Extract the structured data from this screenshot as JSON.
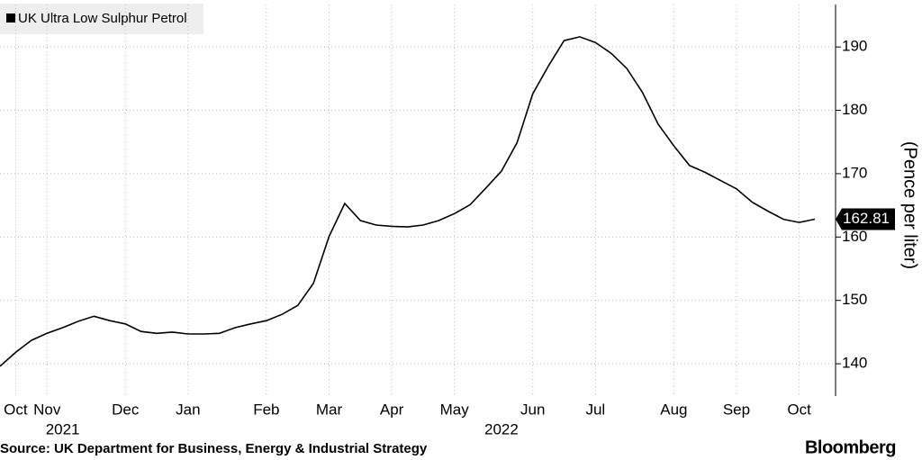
{
  "chart_data": {
    "type": "line",
    "legend_title": "UK Ultra Low Sulphur Petrol",
    "y_axis_label": "(Pence per liter)",
    "source": "Source: UK Department for Business, Energy & Industrial Strategy",
    "brand": "Bloomberg",
    "categories": [
      null,
      "Oct",
      null,
      "Nov",
      null,
      null,
      null,
      null,
      "Dec",
      null,
      null,
      null,
      "Jan",
      null,
      null,
      null,
      null,
      "Feb",
      null,
      null,
      null,
      "Mar",
      null,
      null,
      null,
      "Apr",
      null,
      null,
      null,
      "May",
      null,
      null,
      null,
      null,
      "Jun",
      null,
      null,
      null,
      "Jul",
      null,
      null,
      null,
      null,
      "Aug",
      null,
      null,
      null,
      "Sep",
      null,
      null,
      null,
      "Oct",
      null
    ],
    "year_labels": [
      null,
      null,
      null,
      null,
      "2021",
      null,
      null,
      null,
      null,
      null,
      null,
      null,
      null,
      null,
      null,
      null,
      null,
      null,
      null,
      null,
      null,
      null,
      null,
      null,
      null,
      null,
      null,
      null,
      null,
      null,
      null,
      null,
      "2022",
      null,
      null,
      null,
      null,
      null,
      null,
      null,
      null,
      null,
      null,
      null,
      null,
      null,
      null,
      null,
      null,
      null,
      null,
      null,
      null
    ],
    "series": [
      {
        "name": "UK Ultra Low Sulphur Petrol",
        "color": "#000000",
        "values": [
          139.6,
          141.8,
          143.7,
          144.8,
          145.7,
          146.7,
          147.5,
          146.8,
          146.3,
          145.1,
          144.8,
          145.0,
          144.7,
          144.7,
          144.8,
          145.7,
          146.3,
          146.8,
          147.8,
          149.2,
          152.7,
          160.1,
          165.3,
          162.6,
          161.9,
          161.7,
          161.6,
          161.9,
          162.6,
          163.7,
          165.1,
          167.7,
          170.4,
          174.9,
          182.6,
          187.0,
          191.0,
          191.6,
          190.7,
          189.0,
          186.6,
          182.8,
          177.8,
          174.4,
          171.3,
          170.2,
          168.9,
          167.6,
          165.5,
          164.1,
          162.8,
          162.3,
          162.81
        ]
      }
    ],
    "ylim": [
      134.9,
      196.7
    ],
    "yticks": [
      140,
      150,
      160,
      170,
      180,
      190
    ],
    "grid": true
  }
}
